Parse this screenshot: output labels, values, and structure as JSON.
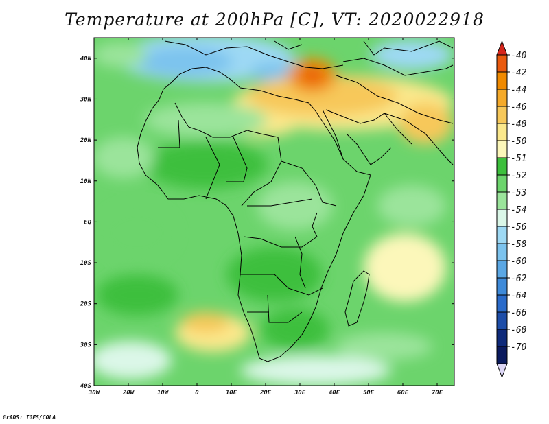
{
  "title": "Temperature at 200hPa [C], VT: 2020022918",
  "credit": "GrADS: IGES/COLA",
  "map": {
    "lon_labels": [
      "30W",
      "20W",
      "10W",
      "0",
      "10E",
      "20E",
      "30E",
      "40E",
      "50E",
      "60E",
      "70E"
    ],
    "lat_labels": [
      "40N",
      "30N",
      "20N",
      "10N",
      "EQ",
      "10S",
      "20S",
      "30S",
      "40S"
    ],
    "lon_range": [
      -30,
      75
    ],
    "lat_range": [
      -40,
      45
    ]
  },
  "colorbar": {
    "labels": [
      "-40",
      "-42",
      "-44",
      "-46",
      "-48",
      "-50",
      "-51",
      "-52",
      "-53",
      "-54",
      "-56",
      "-58",
      "-60",
      "-62",
      "-64",
      "-66",
      "-68",
      "-70"
    ],
    "colors": [
      "#d6261c",
      "#ea5a0e",
      "#f08a00",
      "#f5aa2a",
      "#f7c85a",
      "#fbe88c",
      "#fcf7ba",
      "#3cbf3c",
      "#6cd46c",
      "#9be49b",
      "#dbf7e8",
      "#9ed9f4",
      "#7cc3ee",
      "#5aa7e4",
      "#3e8ad9",
      "#2a6bca",
      "#1d4da8",
      "#0e2a7a",
      "#0a1a5e"
    ],
    "under_color": "#dcd6f5"
  },
  "chart_data": {
    "type": "heatmap",
    "title": "Temperature at 200hPa [C], VT: 2020022918",
    "x_range": [
      -30,
      75
    ],
    "y_range": [
      -40,
      45
    ],
    "legend_values": [
      -40,
      -42,
      -44,
      -46,
      -48,
      -50,
      -51,
      -52,
      -53,
      -54,
      -56,
      -58,
      -60,
      -62,
      -64,
      -66,
      -68,
      -70
    ]
  }
}
